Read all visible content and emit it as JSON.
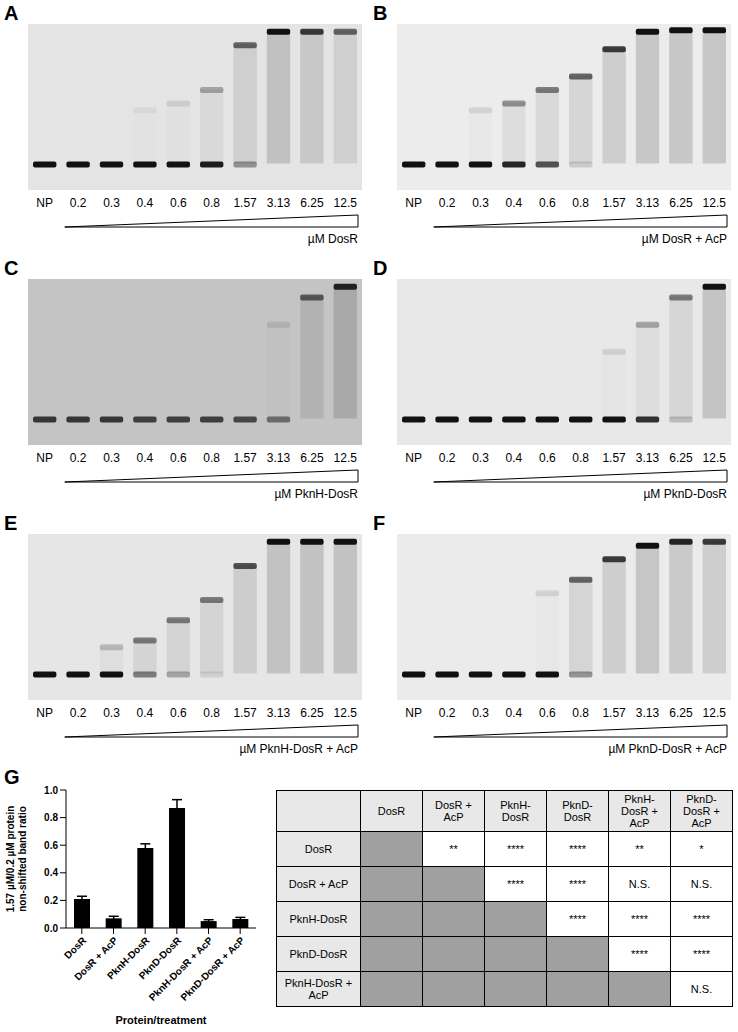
{
  "gels": [
    {
      "letter": "A",
      "lanes": [
        "NP",
        "0.2",
        "0.3",
        "0.4",
        "0.6",
        "0.8",
        "1.57",
        "3.13",
        "6.25",
        "12.5"
      ],
      "axis_label": "µM DosR",
      "background": "#e4e4e4",
      "free_probe": [
        1,
        1,
        1,
        1,
        1,
        0.95,
        0.4,
        0,
        0,
        0
      ],
      "complex": [
        0,
        0,
        0,
        0.05,
        0.1,
        0.3,
        0.6,
        1,
        0.8,
        0.6
      ],
      "complex_mobility": [
        null,
        null,
        null,
        0.6,
        0.55,
        0.45,
        0.12,
        0.02,
        0.02,
        0.02
      ]
    },
    {
      "letter": "B",
      "lanes": [
        "NP",
        "0.2",
        "0.3",
        "0.4",
        "0.6",
        "0.8",
        "1.57",
        "3.13",
        "6.25",
        "12.5"
      ],
      "axis_label": "µM DosR + AcP",
      "background": "#ececec",
      "free_probe": [
        1,
        1,
        1,
        0.9,
        0.7,
        0.15,
        0,
        0,
        0,
        0
      ],
      "complex": [
        0,
        0,
        0.1,
        0.4,
        0.5,
        0.6,
        0.8,
        1,
        1,
        1
      ],
      "complex_mobility": [
        null,
        null,
        0.6,
        0.55,
        0.45,
        0.35,
        0.15,
        0.02,
        0.01,
        0.01
      ]
    },
    {
      "letter": "C",
      "lanes": [
        "NP",
        "0.2",
        "0.3",
        "0.4",
        "0.6",
        "0.8",
        "1.57",
        "3.13",
        "6.25",
        "12.5"
      ],
      "axis_label": "µM PknH-DosR",
      "background": "#c4c4c4",
      "free_probe": [
        0.8,
        0.8,
        0.8,
        0.75,
        0.75,
        0.75,
        0.7,
        0.5,
        0,
        0
      ],
      "complex": [
        0,
        0,
        0,
        0,
        0,
        0,
        0,
        0.1,
        0.6,
        0.9
      ],
      "complex_mobility": [
        null,
        null,
        null,
        null,
        null,
        null,
        null,
        0.3,
        0.1,
        0.02
      ]
    },
    {
      "letter": "D",
      "lanes": [
        "NP",
        "0.2",
        "0.3",
        "0.4",
        "0.6",
        "0.8",
        "1.57",
        "3.13",
        "6.25",
        "12.5"
      ],
      "axis_label": "µM PknD-DosR",
      "background": "#e8e8e8",
      "free_probe": [
        1,
        1,
        1,
        1,
        1,
        1,
        1,
        0.85,
        0.2,
        0
      ],
      "complex": [
        0,
        0,
        0,
        0,
        0,
        0,
        0.1,
        0.3,
        0.5,
        1
      ],
      "complex_mobility": [
        null,
        null,
        null,
        null,
        null,
        null,
        0.5,
        0.3,
        0.1,
        0.02
      ]
    },
    {
      "letter": "E",
      "lanes": [
        "NP",
        "0.2",
        "0.3",
        "0.4",
        "0.6",
        "0.8",
        "1.57",
        "3.13",
        "6.25",
        "12.5"
      ],
      "axis_label": "µM PknH-DosR + AcP",
      "background": "#e6e6e6",
      "free_probe": [
        1,
        1,
        1,
        0.5,
        0.3,
        0.1,
        0,
        0,
        0,
        0
      ],
      "complex": [
        0,
        0,
        0.2,
        0.5,
        0.5,
        0.5,
        0.7,
        1,
        1,
        1
      ],
      "complex_mobility": [
        null,
        null,
        0.8,
        0.75,
        0.6,
        0.45,
        0.2,
        0.02,
        0.02,
        0.02
      ]
    },
    {
      "letter": "F",
      "lanes": [
        "NP",
        "0.2",
        "0.3",
        "0.4",
        "0.6",
        "0.8",
        "1.57",
        "3.13",
        "6.25",
        "12.5"
      ],
      "axis_label": "µM PknD-DosR + AcP",
      "background": "#ebebeb",
      "free_probe": [
        1,
        1,
        1,
        1,
        1,
        0.4,
        0,
        0,
        0,
        0
      ],
      "complex": [
        0,
        0,
        0,
        0,
        0.1,
        0.6,
        0.8,
        1,
        0.9,
        0.8
      ],
      "complex_mobility": [
        null,
        null,
        null,
        null,
        0.4,
        0.3,
        0.15,
        0.05,
        0.02,
        0.02
      ]
    }
  ],
  "chart_data": {
    "type": "bar",
    "letter": "G",
    "categories": [
      "DosR",
      "DosR + AcP",
      "PknH-DosR",
      "PknD-DosR",
      "PknH-DosR + AcP",
      "PknD-DosR + AcP"
    ],
    "values": [
      0.21,
      0.07,
      0.58,
      0.87,
      0.05,
      0.065
    ],
    "error": [
      0.02,
      0.015,
      0.03,
      0.06,
      0.01,
      0.012
    ],
    "color": "#000000",
    "ylim": [
      0,
      1
    ],
    "yticks": [
      {
        "value": 0,
        "label": "0.0"
      },
      {
        "value": 0.2,
        "label": "0.2"
      },
      {
        "value": 0.4,
        "label": "0.4"
      },
      {
        "value": 0.6,
        "label": "0.6"
      },
      {
        "value": 0.8,
        "label": "0.8"
      },
      {
        "value": 1,
        "label": "1.0"
      }
    ],
    "y_label": "1.57 µM/0.2 µM protein non-shifted band ratio",
    "x_label": "Protein/treatment",
    "grid": false
  },
  "table": {
    "header": [
      "DosR",
      "DosR + AcP",
      "PknH-DosR",
      "PknD-DosR",
      "PknH-DosR + AcP",
      "PknD-DosR + AcP"
    ],
    "rows": [
      {
        "label": "DosR",
        "cells": [
          null,
          "**",
          "****",
          "****",
          "**",
          "*"
        ]
      },
      {
        "label": "DosR + AcP",
        "cells": [
          null,
          null,
          "****",
          "****",
          "N.S.",
          "N.S."
        ]
      },
      {
        "label": "PknH-DosR",
        "cells": [
          null,
          null,
          null,
          "****",
          "****",
          "****"
        ]
      },
      {
        "label": "PknD-DosR",
        "cells": [
          null,
          null,
          null,
          null,
          "****",
          "****"
        ]
      },
      {
        "label": "PknH-DosR + AcP",
        "cells": [
          null,
          null,
          null,
          null,
          null,
          "N.S."
        ]
      }
    ]
  }
}
